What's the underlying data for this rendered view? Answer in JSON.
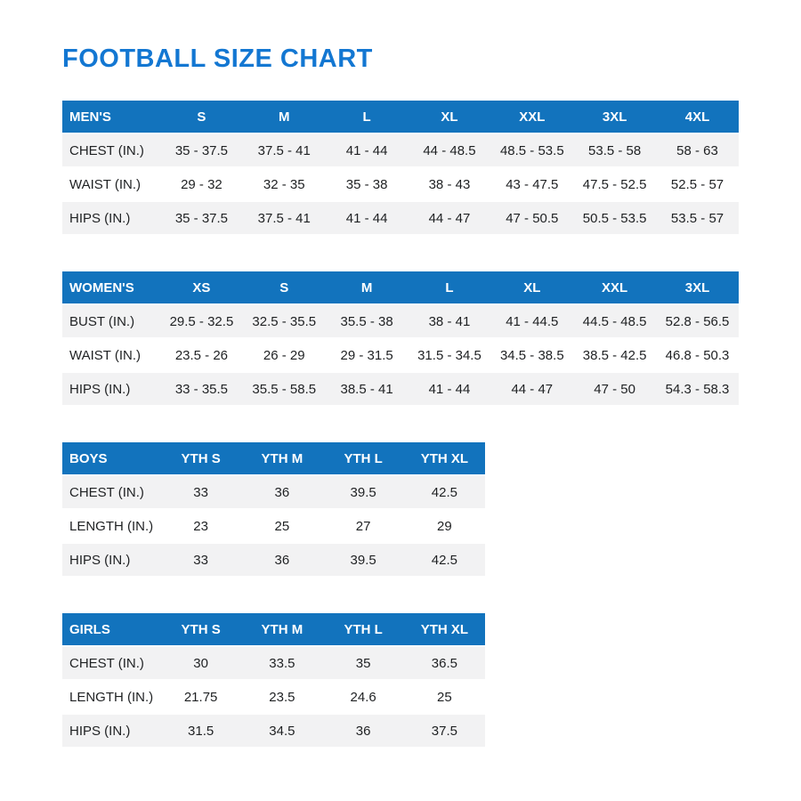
{
  "page": {
    "title": "FOOTBALL SIZE CHART"
  },
  "colors": {
    "title_blue": "#1377d2",
    "header_blue": "#1273bd",
    "row_stripe": "#f2f2f3",
    "body_text": "#1f2123",
    "header_text": "#ffffff"
  },
  "tables": [
    {
      "id": "mens",
      "width": "full",
      "header": [
        "MEN'S",
        "S",
        "M",
        "L",
        "XL",
        "XXL",
        "3XL",
        "4XL"
      ],
      "rows": [
        [
          "CHEST (IN.)",
          "35 - 37.5",
          "37.5 - 41",
          "41 - 44",
          "44 - 48.5",
          "48.5 - 53.5",
          "53.5 - 58",
          "58 - 63"
        ],
        [
          "WAIST (IN.)",
          "29 - 32",
          "32 - 35",
          "35 - 38",
          "38 - 43",
          "43 - 47.5",
          "47.5 - 52.5",
          "52.5 - 57"
        ],
        [
          "HIPS (IN.)",
          "35 - 37.5",
          "37.5 - 41",
          "41 - 44",
          "44 - 47",
          "47 - 50.5",
          "50.5 - 53.5",
          "53.5 - 57"
        ]
      ]
    },
    {
      "id": "womens",
      "width": "full",
      "header": [
        "WOMEN'S",
        "XS",
        "S",
        "M",
        "L",
        "XL",
        "XXL",
        "3XL"
      ],
      "rows": [
        [
          "BUST (IN.)",
          "29.5 - 32.5",
          "32.5 - 35.5",
          "35.5 - 38",
          "38 - 41",
          "41 - 44.5",
          "44.5 - 48.5",
          "52.8 - 56.5"
        ],
        [
          "WAIST (IN.)",
          "23.5 - 26",
          "26 - 29",
          "29 - 31.5",
          "31.5 - 34.5",
          "34.5 - 38.5",
          "38.5 - 42.5",
          "46.8 - 50.3"
        ],
        [
          "HIPS (IN.)",
          "33 - 35.5",
          "35.5 - 58.5",
          "38.5 - 41",
          "41 - 44",
          "44 - 47",
          "47 - 50",
          "54.3 - 58.3"
        ]
      ]
    },
    {
      "id": "boys",
      "width": "narrow",
      "header": [
        "BOYS",
        "YTH S",
        "YTH M",
        "YTH L",
        "YTH XL"
      ],
      "rows": [
        [
          "CHEST (IN.)",
          "33",
          "36",
          "39.5",
          "42.5"
        ],
        [
          "LENGTH (IN.)",
          "23",
          "25",
          "27",
          "29"
        ],
        [
          "HIPS (IN.)",
          "33",
          "36",
          "39.5",
          "42.5"
        ]
      ]
    },
    {
      "id": "girls",
      "width": "narrow",
      "header": [
        "GIRLS",
        "YTH S",
        "YTH M",
        "YTH L",
        "YTH XL"
      ],
      "rows": [
        [
          "CHEST (IN.)",
          "30",
          "33.5",
          "35",
          "36.5"
        ],
        [
          "LENGTH (IN.)",
          "21.75",
          "23.5",
          "24.6",
          "25"
        ],
        [
          "HIPS (IN.)",
          "31.5",
          "34.5",
          "36",
          "37.5"
        ]
      ]
    }
  ]
}
